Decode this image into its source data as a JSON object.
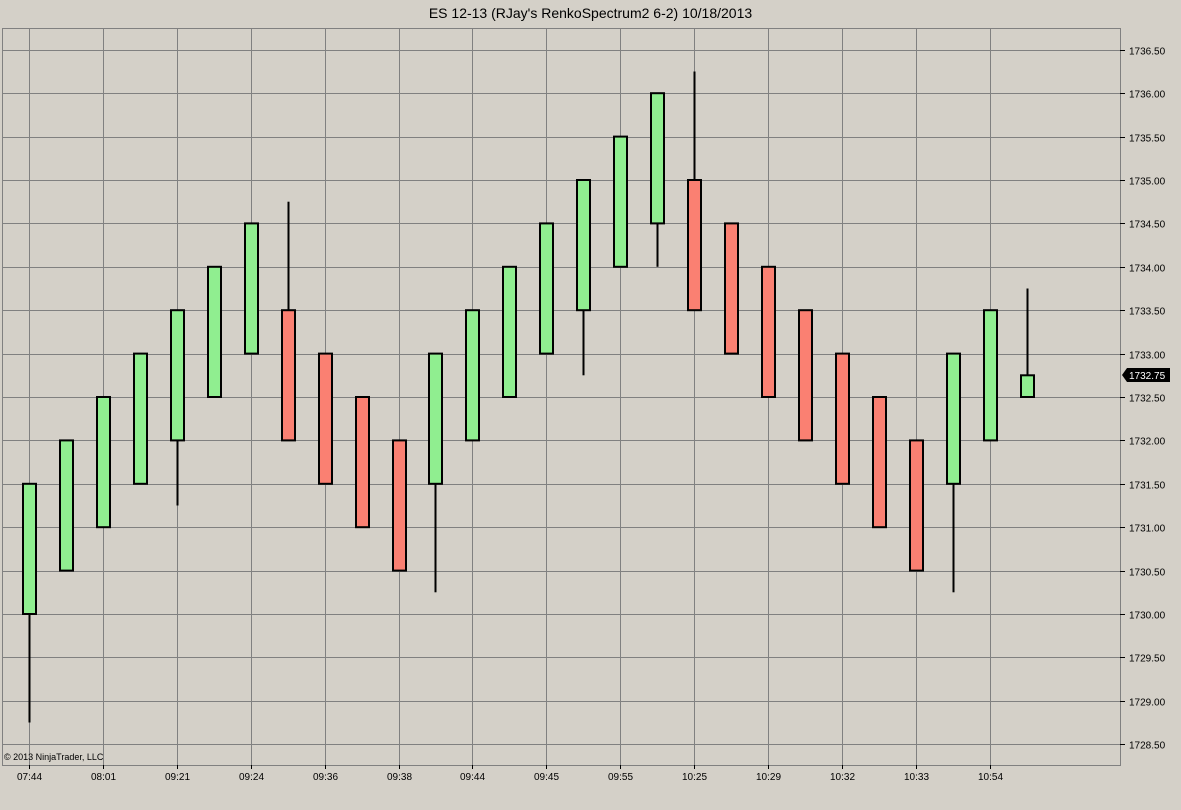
{
  "window": {
    "title": "ES 12-13 (RJay's RenkoSpectrum2  6-2)  10/18/2013"
  },
  "copyright": "© 2013 NinjaTrader, LLC",
  "colors": {
    "up": "#90ee90",
    "down": "#fa8072",
    "outline": "#000000",
    "grid": "#808080",
    "background": "#d4d0c8"
  },
  "chart_data": {
    "type": "candlestick",
    "ylim": [
      1728.25,
      1736.75
    ],
    "y_ticks": [
      "1728.50",
      "1729.00",
      "1729.50",
      "1730.00",
      "1730.50",
      "1731.00",
      "1731.50",
      "1732.00",
      "1732.50",
      "1733.00",
      "1733.50",
      "1734.00",
      "1734.50",
      "1735.00",
      "1735.50",
      "1736.00",
      "1736.50"
    ],
    "x_tick_labels": [
      "07:44",
      "08:01",
      "09:21",
      "09:24",
      "09:36",
      "09:38",
      "09:44",
      "09:45",
      "09:55",
      "10:25",
      "10:29",
      "10:32",
      "10:33",
      "10:54"
    ],
    "last_price": "1732.75",
    "grid": true,
    "bars": [
      {
        "open": 1730.0,
        "close": 1731.5,
        "high": 1731.5,
        "low": 1728.75
      },
      {
        "open": 1730.5,
        "close": 1732.0,
        "high": 1732.0,
        "low": 1730.5
      },
      {
        "open": 1731.0,
        "close": 1732.5,
        "high": 1732.5,
        "low": 1731.0
      },
      {
        "open": 1731.5,
        "close": 1733.0,
        "high": 1733.0,
        "low": 1731.5
      },
      {
        "open": 1732.0,
        "close": 1733.5,
        "high": 1733.5,
        "low": 1731.25
      },
      {
        "open": 1732.5,
        "close": 1734.0,
        "high": 1734.0,
        "low": 1732.5
      },
      {
        "open": 1733.0,
        "close": 1734.5,
        "high": 1734.5,
        "low": 1733.0
      },
      {
        "open": 1733.5,
        "close": 1732.0,
        "high": 1734.75,
        "low": 1732.0
      },
      {
        "open": 1733.0,
        "close": 1731.5,
        "high": 1733.0,
        "low": 1731.5
      },
      {
        "open": 1732.5,
        "close": 1731.0,
        "high": 1732.5,
        "low": 1731.0
      },
      {
        "open": 1732.0,
        "close": 1730.5,
        "high": 1732.0,
        "low": 1730.5
      },
      {
        "open": 1731.5,
        "close": 1733.0,
        "high": 1733.0,
        "low": 1730.25
      },
      {
        "open": 1732.0,
        "close": 1733.5,
        "high": 1733.5,
        "low": 1732.0
      },
      {
        "open": 1732.5,
        "close": 1734.0,
        "high": 1734.0,
        "low": 1732.5
      },
      {
        "open": 1733.0,
        "close": 1734.5,
        "high": 1734.5,
        "low": 1733.0
      },
      {
        "open": 1733.5,
        "close": 1735.0,
        "high": 1735.0,
        "low": 1732.75
      },
      {
        "open": 1734.0,
        "close": 1735.5,
        "high": 1735.5,
        "low": 1734.0
      },
      {
        "open": 1734.5,
        "close": 1736.0,
        "high": 1736.0,
        "low": 1734.0
      },
      {
        "open": 1735.0,
        "close": 1733.5,
        "high": 1736.25,
        "low": 1733.5
      },
      {
        "open": 1734.5,
        "close": 1733.0,
        "high": 1734.5,
        "low": 1733.0
      },
      {
        "open": 1734.0,
        "close": 1732.5,
        "high": 1734.0,
        "low": 1732.5
      },
      {
        "open": 1733.5,
        "close": 1732.0,
        "high": 1733.5,
        "low": 1732.0
      },
      {
        "open": 1733.0,
        "close": 1731.5,
        "high": 1733.0,
        "low": 1731.5
      },
      {
        "open": 1732.5,
        "close": 1731.0,
        "high": 1732.5,
        "low": 1731.0
      },
      {
        "open": 1732.0,
        "close": 1730.5,
        "high": 1732.0,
        "low": 1730.5
      },
      {
        "open": 1731.5,
        "close": 1733.0,
        "high": 1733.0,
        "low": 1730.25
      },
      {
        "open": 1732.0,
        "close": 1733.5,
        "high": 1733.5,
        "low": 1732.0
      },
      {
        "open": 1732.5,
        "close": 1732.75,
        "high": 1733.75,
        "low": 1732.5
      }
    ]
  }
}
